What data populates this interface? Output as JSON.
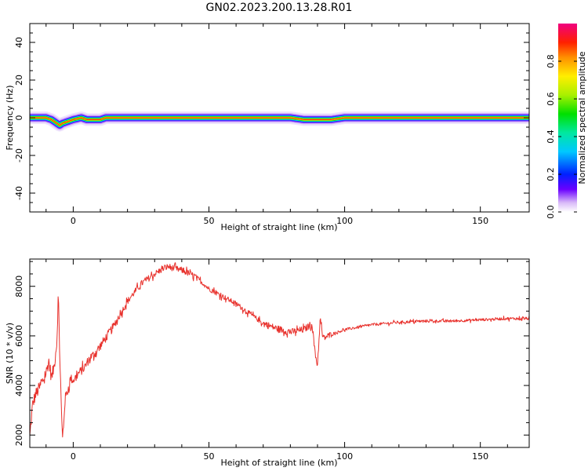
{
  "title": "GN02.2023.200.13.28.R01",
  "colors": {
    "snr_line": "#e8312c",
    "axis": "#000000"
  },
  "chart_data": [
    {
      "type": "heatmap",
      "xlabel": "Height of straight line (km)",
      "ylabel": "Frequency (Hz)",
      "xlim": [
        -16,
        168
      ],
      "ylim": [
        -50,
        50
      ],
      "xticks": [
        0,
        50,
        100,
        150
      ],
      "yticks": [
        -40,
        -20,
        0,
        20,
        40
      ],
      "colorbar": {
        "label": "Normalized spectral amplitude",
        "range": [
          0,
          1
        ],
        "ticks": [
          "0.0",
          "0.2",
          "0.4",
          "0.6",
          "0.8"
        ]
      },
      "ridge": {
        "x": [
          -16,
          -10,
          -8,
          -6,
          -5,
          -4,
          -2,
          0,
          3,
          5,
          8,
          10,
          12,
          20,
          60,
          80,
          85,
          88,
          92,
          95,
          100,
          110,
          168
        ],
        "y": [
          0,
          0,
          -1,
          -3,
          -4,
          -3,
          -2,
          -1,
          0,
          -1,
          -1,
          -1,
          0,
          0,
          0,
          0,
          -1,
          -1,
          -1,
          -1,
          0,
          0,
          0
        ]
      }
    },
    {
      "type": "line",
      "xlabel": "Height of straight line (km)",
      "ylabel": "SNR (10 * v/v)",
      "xlim": [
        -16,
        168
      ],
      "ylim": [
        1500,
        9100
      ],
      "xticks": [
        0,
        50,
        100,
        150
      ],
      "yticks": [
        2000,
        4000,
        6000,
        8000
      ],
      "series": [
        {
          "x": [
            -16,
            -15,
            -14,
            -12,
            -10,
            -9,
            -8,
            -7,
            -6,
            -5.5,
            -5,
            -4.5,
            -4,
            -3.5,
            -3,
            -2,
            -1,
            0,
            2,
            4,
            6,
            8,
            10,
            15,
            20,
            25,
            30,
            33,
            35,
            38,
            40,
            45,
            50,
            55,
            60,
            65,
            70,
            75,
            80,
            85,
            88,
            89,
            90,
            91,
            92,
            94,
            96,
            100,
            110,
            120,
            130,
            140,
            150,
            160,
            168
          ],
          "y": [
            1900,
            3200,
            3600,
            4000,
            4500,
            5000,
            4300,
            4800,
            5800,
            7700,
            5500,
            3500,
            1800,
            2500,
            3500,
            3800,
            4300,
            4200,
            4500,
            4700,
            5100,
            5300,
            5600,
            6400,
            7400,
            8100,
            8500,
            8700,
            8800,
            8700,
            8650,
            8400,
            7900,
            7600,
            7300,
            6900,
            6500,
            6300,
            6150,
            6250,
            6500,
            5400,
            4800,
            6700,
            5900,
            6000,
            6100,
            6250,
            6450,
            6550,
            6600,
            6600,
            6650,
            6700,
            6700
          ]
        }
      ]
    }
  ]
}
